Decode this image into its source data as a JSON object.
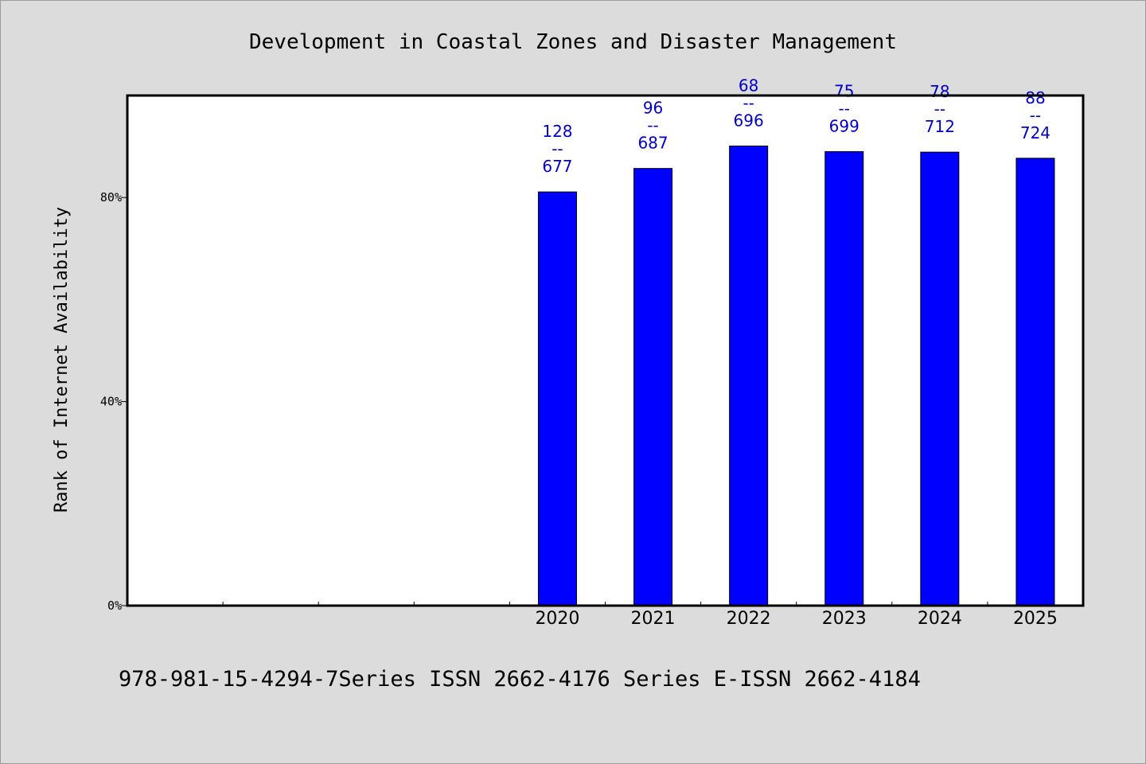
{
  "chart_data": {
    "type": "bar",
    "title": "Development in Coastal Zones and Disaster Management",
    "xlabel": "",
    "ylabel": "Rank of Internet Availability",
    "categories": [
      "",
      "",
      "",
      "",
      "2020",
      "2021",
      "2022",
      "2023",
      "2024",
      "2025"
    ],
    "values": [
      null,
      null,
      null,
      null,
      81.1,
      85.7,
      90.1,
      89.0,
      88.9,
      87.7
    ],
    "data_labels": [
      null,
      null,
      null,
      null,
      [
        "128",
        "--",
        "677"
      ],
      [
        "96",
        "--",
        "687"
      ],
      [
        "68",
        "--",
        "696"
      ],
      [
        "75",
        "--",
        "699"
      ],
      [
        "78",
        "--",
        "712"
      ],
      [
        "88",
        "--",
        "724"
      ]
    ],
    "ylim": [
      0,
      100
    ],
    "yticks": [
      {
        "value": 0,
        "label": "0%"
      },
      {
        "value": 40,
        "label": "40%"
      },
      {
        "value": 80,
        "label": "80%"
      }
    ],
    "grid": false,
    "legend": "none",
    "colors": {
      "bar": "#0000ff",
      "bar_edge": "#000000",
      "data_label": "#0000cc",
      "plot_bg": "#ffffff",
      "page_bg": "#dcdcdc"
    }
  },
  "footer": "978-981-15-4294-7Series ISSN 2662-4176 Series E-ISSN 2662-4184"
}
